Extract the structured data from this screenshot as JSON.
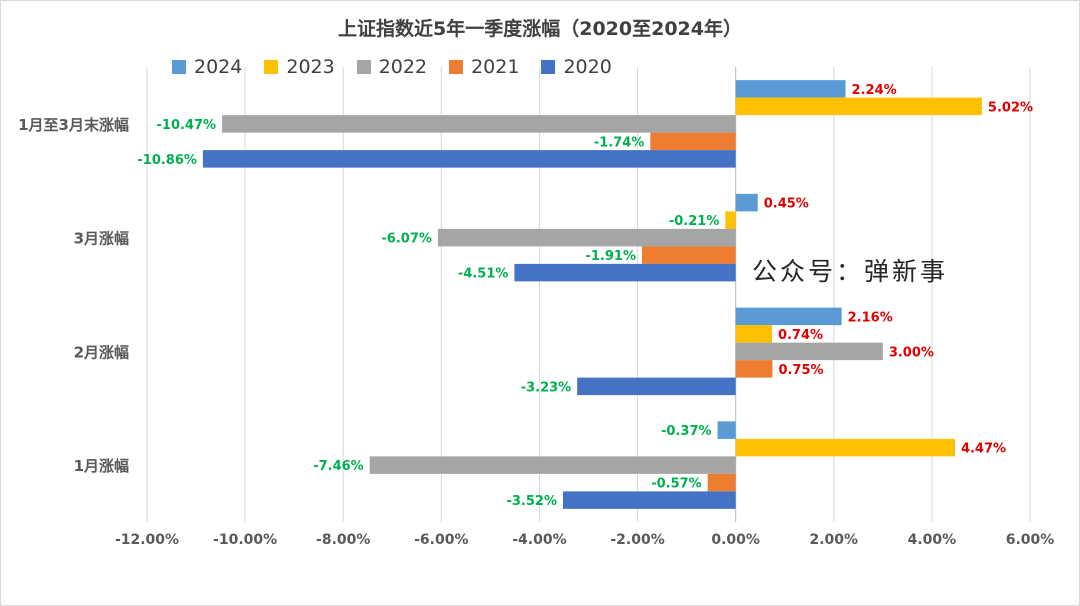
{
  "chart_data": {
    "type": "bar",
    "orientation": "horizontal",
    "title": "上证指数近5年一季度涨幅（2020至2024年）",
    "categories": [
      "1月涨幅",
      "2月涨幅",
      "3月涨幅",
      "1月至3月末涨幅"
    ],
    "series": [
      {
        "name": "2024",
        "color": "#5B9BD5",
        "values": [
          -0.37,
          2.16,
          0.45,
          2.24
        ]
      },
      {
        "name": "2023",
        "color": "#FFC000",
        "values": [
          4.47,
          0.74,
          -0.21,
          5.02
        ]
      },
      {
        "name": "2022",
        "color": "#A5A5A5",
        "values": [
          -7.46,
          3.0,
          -6.07,
          -10.47
        ]
      },
      {
        "name": "2021",
        "color": "#ED7D31",
        "values": [
          -0.57,
          0.75,
          -1.91,
          -1.74
        ]
      },
      {
        "name": "2020",
        "color": "#4472C4",
        "values": [
          -3.52,
          -3.23,
          -4.51,
          -10.86
        ]
      }
    ],
    "xlim": [
      -12,
      6
    ],
    "xticks": [
      -12,
      -10,
      -8,
      -6,
      -4,
      -2,
      0,
      2,
      4,
      6
    ],
    "tick_labels": [
      "-12.00%",
      "-10.00%",
      "-8.00%",
      "-6.00%",
      "-4.00%",
      "-2.00%",
      "0.00%",
      "2.00%",
      "4.00%",
      "6.00%"
    ],
    "grid": true,
    "legend_position": "top-left",
    "positive_label_color": "#E00000",
    "negative_label_color": "#00B050",
    "gridline_color": "#D9D9D9",
    "axis_label_color": "#595959"
  },
  "watermark": "公众号：弹新事"
}
